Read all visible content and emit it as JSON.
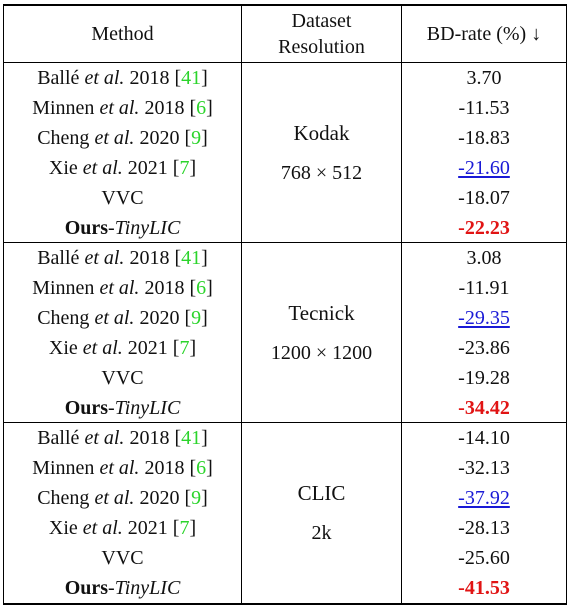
{
  "table": {
    "headers": {
      "method": "Method",
      "dataset_line1": "Dataset",
      "dataset_line2": "Resolution",
      "bdrate": "BD-rate (%) ↓"
    },
    "groups": [
      {
        "dataset": "Kodak",
        "resolution": "768 × 512",
        "rows": [
          {
            "author": "Ballé",
            "etal": "et al.",
            "year": "2018",
            "ref": "41",
            "value": "3.70",
            "style": "normal"
          },
          {
            "author": "Minnen",
            "etal": "et al.",
            "year": "2018",
            "ref": "6",
            "value": "-11.53",
            "style": "normal"
          },
          {
            "author": "Cheng",
            "etal": "et al.",
            "year": "2020",
            "ref": "9",
            "value": "-18.83",
            "style": "normal"
          },
          {
            "author": "Xie",
            "etal": "et al.",
            "year": "2021",
            "ref": "7",
            "value": "-21.60",
            "style": "second"
          },
          {
            "method": "VVC",
            "value": "-18.07",
            "style": "normal"
          },
          {
            "ours": "Ours",
            "sep": " - ",
            "name": "TinyLIC",
            "value": "-22.23",
            "style": "best"
          }
        ]
      },
      {
        "dataset": "Tecnick",
        "resolution": "1200 × 1200",
        "rows": [
          {
            "author": "Ballé",
            "etal": "et al.",
            "year": "2018",
            "ref": "41",
            "value": "3.08",
            "style": "normal"
          },
          {
            "author": "Minnen",
            "etal": "et al.",
            "year": "2018",
            "ref": "6",
            "value": "-11.91",
            "style": "normal"
          },
          {
            "author": "Cheng",
            "etal": "et al.",
            "year": "2020",
            "ref": "9",
            "value": "-29.35",
            "style": "second"
          },
          {
            "author": "Xie",
            "etal": "et al.",
            "year": "2021",
            "ref": "7",
            "value": "-23.86",
            "style": "normal"
          },
          {
            "method": "VVC",
            "value": "-19.28",
            "style": "normal"
          },
          {
            "ours": "Ours",
            "sep": " - ",
            "name": "TinyLIC",
            "value": "-34.42",
            "style": "best"
          }
        ]
      },
      {
        "dataset": "CLIC",
        "resolution": "2k",
        "rows": [
          {
            "author": "Ballé",
            "etal": "et al.",
            "year": "2018",
            "ref": "41",
            "value": "-14.10",
            "style": "normal"
          },
          {
            "author": "Minnen",
            "etal": "et al.",
            "year": "2018",
            "ref": "6",
            "value": "-32.13",
            "style": "normal"
          },
          {
            "author": "Cheng",
            "etal": "et al.",
            "year": "2020",
            "ref": "9",
            "value": "-37.92",
            "style": "second"
          },
          {
            "author": "Xie",
            "etal": "et al.",
            "year": "2021",
            "ref": "7",
            "value": "-28.13",
            "style": "normal"
          },
          {
            "method": "VVC",
            "value": "-25.60",
            "style": "normal"
          },
          {
            "ours": "Ours",
            "sep": " - ",
            "name": "TinyLIC",
            "value": "-41.53",
            "style": "best"
          }
        ]
      }
    ]
  }
}
